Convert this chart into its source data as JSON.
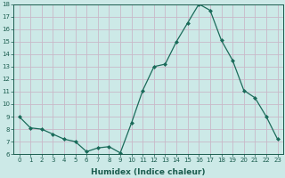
{
  "x": [
    0,
    1,
    2,
    3,
    4,
    5,
    6,
    7,
    8,
    9,
    10,
    11,
    12,
    13,
    14,
    15,
    16,
    17,
    18,
    19,
    20,
    21,
    22,
    23
  ],
  "y": [
    9.0,
    8.1,
    8.0,
    7.6,
    7.2,
    7.0,
    6.2,
    6.5,
    6.6,
    6.1,
    8.5,
    11.1,
    13.0,
    13.2,
    15.0,
    16.5,
    18.0,
    17.5,
    15.1,
    13.5,
    11.1,
    10.5,
    9.0,
    7.2
  ],
  "xlabel": "Humidex (Indice chaleur)",
  "ylim": [
    6,
    18
  ],
  "xlim": [
    -0.5,
    23.5
  ],
  "yticks": [
    6,
    7,
    8,
    9,
    10,
    11,
    12,
    13,
    14,
    15,
    16,
    17,
    18
  ],
  "xticks": [
    0,
    1,
    2,
    3,
    4,
    5,
    6,
    7,
    8,
    9,
    10,
    11,
    12,
    13,
    14,
    15,
    16,
    17,
    18,
    19,
    20,
    21,
    22,
    23
  ],
  "line_color": "#1a6b5a",
  "marker": "D",
  "marker_size": 2.0,
  "bg_color": "#cce9e7",
  "grid_color": "#c9b8c8",
  "label_color": "#1a5c4e",
  "tick_color": "#1a5c4e",
  "tick_fontsize": 5.0,
  "xlabel_fontsize": 6.5,
  "linewidth": 0.9
}
